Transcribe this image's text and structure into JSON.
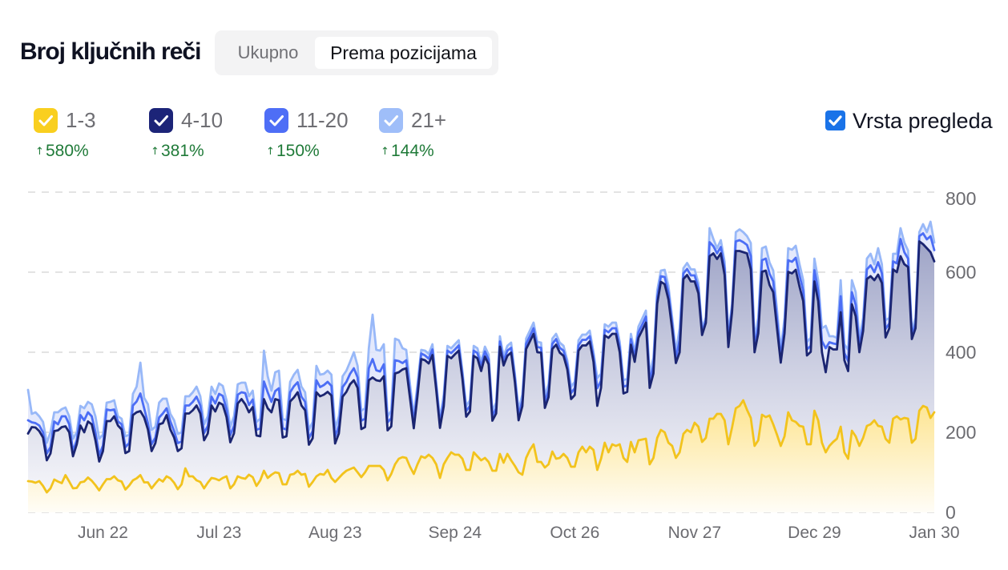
{
  "header": {
    "title": "Broj ključnih reči",
    "tabs": [
      {
        "label": "Ukupno",
        "selected": false
      },
      {
        "label": "Prema pozicijama",
        "selected": true
      }
    ]
  },
  "legend": {
    "items": [
      {
        "label": "1-3",
        "color": "#f9cf1f",
        "checked": true,
        "arrow": "↑",
        "change": "580%"
      },
      {
        "label": "4-10",
        "color": "#1c2478",
        "checked": true,
        "arrow": "↑",
        "change": "381%"
      },
      {
        "label": "11-20",
        "color": "#4e6ef6",
        "checked": true,
        "arrow": "↑",
        "change": "150%"
      },
      {
        "label": "21+",
        "color": "#9fbef9",
        "checked": true,
        "arrow": "↑",
        "change": "144%"
      }
    ]
  },
  "view_toggle": {
    "label": "Vrsta pregleda",
    "checked": true,
    "color": "#1a73e8"
  },
  "colors": {
    "positive_change": "#1f7a38",
    "text_muted": "#6e6e73"
  },
  "chart_data": {
    "type": "line",
    "title": "Broj ključnih reči",
    "xlabel": "",
    "ylabel": "",
    "x_unit": "day",
    "ylim": [
      0,
      800
    ],
    "yticks": [
      0,
      200,
      400,
      600,
      800
    ],
    "xticks": [
      {
        "label": "Jun 22",
        "index": 20
      },
      {
        "label": "Jul 23",
        "index": 51
      },
      {
        "label": "Aug 23",
        "index": 82
      },
      {
        "label": "Sep 24",
        "index": 114
      },
      {
        "label": "Oct 26",
        "index": 146
      },
      {
        "label": "Nov 27",
        "index": 178
      },
      {
        "label": "Dec 29",
        "index": 210
      },
      {
        "label": "Jan 30",
        "index": 242
      }
    ],
    "grid": true,
    "legend_position": "top-left",
    "series": [
      {
        "name": "1-3",
        "color": "#f2c31d",
        "values": [
          78,
          77,
          74,
          78,
          66,
          50,
          60,
          82,
          77,
          73,
          93,
          77,
          60,
          61,
          75,
          77,
          87,
          79,
          68,
          55,
          70,
          83,
          83,
          90,
          80,
          77,
          57,
          67,
          80,
          85,
          93,
          75,
          75,
          60,
          72,
          83,
          77,
          90,
          85,
          74,
          58,
          70,
          110,
          90,
          90,
          80,
          76,
          60,
          74,
          86,
          84,
          80,
          86,
          90,
          60,
          70,
          90,
          86,
          84,
          94,
          88,
          66,
          80,
          104,
          86,
          94,
          100,
          98,
          70,
          70,
          94,
          96,
          104,
          94,
          96,
          64,
          76,
          90,
          96,
          94,
          106,
          86,
          76,
          86,
          96,
          104,
          108,
          112,
          100,
          88,
          100,
          116,
          116,
          116,
          116,
          106,
          80,
          96,
          120,
          134,
          138,
          136,
          114,
          96,
          120,
          140,
          136,
          144,
          136,
          120,
          86,
          120,
          136,
          150,
          144,
          144,
          134,
          106,
          106,
          150,
          140,
          130,
          136,
          126,
          104,
          104,
          146,
          124,
          146,
          130,
          116,
          100,
          94,
          136,
          156,
          170,
          126,
          126,
          112,
          120,
          152,
          134,
          136,
          146,
          136,
          114,
          114,
          150,
          164,
          150,
          164,
          156,
          106,
          134,
          174,
          150,
          170,
          166,
          170,
          136,
          126,
          176,
          150,
          180,
          182,
          184,
          120,
          136,
          186,
          206,
          200,
          174,
          166,
          136,
          150,
          196,
          206,
          200,
          224,
          214,
          176,
          186,
          234,
          234,
          246,
          246,
          230,
          170,
          212,
          260,
          266,
          280,
          256,
          236,
          166,
          180,
          244,
          238,
          242,
          220,
          194,
          166,
          190,
          250,
          230,
          226,
          216,
          214,
          170,
          170,
          254,
          230,
          174,
          150,
          166,
          176,
          184,
          214,
          150,
          134,
          204,
          190,
          166,
          186,
          216,
          220,
          230,
          216,
          214,
          184,
          174,
          234,
          240,
          232,
          236,
          234,
          174,
          184,
          254,
          266,
          262,
          236,
          250
        ]
      },
      {
        "name": "4-10",
        "color": "#1b2571",
        "values": [
          197,
          213,
          212,
          203,
          187,
          130,
          147,
          203,
          205,
          213,
          215,
          200,
          140,
          170,
          217,
          200,
          227,
          220,
          180,
          127,
          153,
          228,
          228,
          240,
          217,
          207,
          148,
          153,
          243,
          250,
          253,
          237,
          207,
          153,
          173,
          220,
          223,
          243,
          207,
          187,
          153,
          160,
          247,
          247,
          255,
          267,
          247,
          180,
          197,
          267,
          252,
          274,
          269,
          238,
          175,
          197,
          272,
          283,
          270,
          250,
          263,
          192,
          190,
          283,
          260,
          250,
          283,
          280,
          187,
          190,
          277,
          287,
          300,
          267,
          255,
          169,
          185,
          300,
          290,
          294,
          301,
          292,
          172,
          197,
          289,
          301,
          320,
          330,
          311,
          208,
          213,
          330,
          337,
          330,
          328,
          340,
          205,
          215,
          347,
          350,
          357,
          360,
          285,
          210,
          290,
          383,
          380,
          372,
          393,
          306,
          211,
          265,
          391,
          385,
          395,
          404,
          333,
          239,
          252,
          391,
          385,
          353,
          389,
          370,
          229,
          247,
          414,
          367,
          391,
          399,
          325,
          230,
          265,
          408,
          427,
          446,
          400,
          399,
          261,
          288,
          408,
          419,
          399,
          391,
          357,
          283,
          293,
          404,
          417,
          417,
          427,
          376,
          266,
          311,
          442,
          436,
          446,
          446,
          400,
          297,
          301,
          419,
          376,
          436,
          455,
          474,
          311,
          347,
          521,
          576,
          570,
          532,
          457,
          373,
          400,
          583,
          593,
          577,
          577,
          547,
          443,
          473,
          640,
          647,
          633,
          647,
          593,
          413,
          500,
          653,
          653,
          650,
          647,
          607,
          400,
          447,
          601,
          604,
          568,
          550,
          460,
          374,
          447,
          601,
          597,
          606,
          564,
          528,
          392,
          401,
          577,
          528,
          400,
          350,
          413,
          407,
          407,
          500,
          380,
          353,
          520,
          490,
          400,
          453,
          583,
          590,
          580,
          594,
          573,
          437,
          460,
          607,
          600,
          640,
          620,
          613,
          433,
          460,
          677,
          670,
          660,
          650,
          627
        ]
      },
      {
        "name": "11-20",
        "color": "#4c6ef5",
        "values": [
          230,
          225,
          223,
          217,
          200,
          147,
          163,
          227,
          220,
          240,
          240,
          220,
          153,
          180,
          243,
          230,
          250,
          240,
          200,
          143,
          167,
          257,
          255,
          257,
          227,
          220,
          163,
          173,
          267,
          277,
          297,
          260,
          223,
          170,
          187,
          237,
          247,
          260,
          227,
          203,
          173,
          177,
          267,
          267,
          276,
          289,
          267,
          198,
          216,
          289,
          272,
          296,
          291,
          258,
          193,
          216,
          294,
          300,
          298,
          268,
          282,
          206,
          210,
          327,
          300,
          276,
          303,
          310,
          210,
          207,
          300,
          315,
          325,
          289,
          276,
          185,
          203,
          330,
          313,
          318,
          326,
          316,
          189,
          216,
          313,
          326,
          346,
          360,
          337,
          229,
          234,
          360,
          383,
          355,
          352,
          370,
          225,
          235,
          380,
          378,
          373,
          380,
          300,
          225,
          305,
          397,
          392,
          384,
          407,
          316,
          222,
          279,
          404,
          398,
          407,
          417,
          343,
          253,
          266,
          404,
          398,
          365,
          402,
          382,
          241,
          260,
          427,
          378,
          404,
          411,
          336,
          243,
          279,
          421,
          440,
          460,
          413,
          411,
          276,
          304,
          421,
          433,
          411,
          404,
          369,
          298,
          310,
          417,
          431,
          431,
          440,
          388,
          310,
          329,
          456,
          450,
          460,
          460,
          413,
          314,
          317,
          433,
          388,
          450,
          469,
          489,
          329,
          367,
          537,
          590,
          588,
          549,
          471,
          385,
          430,
          597,
          608,
          592,
          592,
          560,
          450,
          480,
          675,
          665,
          647,
          663,
          610,
          430,
          510,
          677,
          680,
          675,
          668,
          640,
          415,
          464,
          630,
          634,
          596,
          577,
          483,
          388,
          464,
          630,
          626,
          636,
          592,
          554,
          407,
          416,
          605,
          554,
          428,
          410,
          425,
          422,
          420,
          540,
          398,
          378,
          550,
          518,
          415,
          468,
          607,
          617,
          600,
          625,
          597,
          458,
          472,
          627,
          622,
          683,
          650,
          634,
          444,
          472,
          690,
          697,
          682,
          690,
          655
        ]
      },
      {
        "name": "21+",
        "color": "#98b8f8",
        "values": [
          306,
          246,
          250,
          240,
          226,
          174,
          200,
          250,
          250,
          258,
          262,
          240,
          184,
          200,
          266,
          260,
          276,
          270,
          240,
          184,
          194,
          274,
          276,
          280,
          240,
          234,
          190,
          194,
          296,
          314,
          374,
          286,
          270,
          206,
          214,
          274,
          284,
          284,
          246,
          230,
          196,
          200,
          290,
          290,
          300,
          314,
          290,
          220,
          240,
          314,
          296,
          322,
          316,
          280,
          214,
          240,
          320,
          324,
          324,
          290,
          304,
          226,
          234,
          404,
          340,
          304,
          350,
          354,
          234,
          230,
          326,
          344,
          356,
          314,
          300,
          206,
          226,
          366,
          344,
          346,
          354,
          344,
          210,
          240,
          340,
          354,
          376,
          400,
          366,
          254,
          260,
          410,
          494,
          406,
          404,
          420,
          240,
          254,
          434,
          430,
          410,
          406,
          320,
          240,
          320,
          406,
          404,
          396,
          420,
          326,
          234,
          294,
          416,
          410,
          420,
          430,
          354,
          266,
          280,
          416,
          410,
          376,
          414,
          394,
          254,
          274,
          440,
          390,
          416,
          424,
          346,
          256,
          294,
          434,
          454,
          474,
          426,
          424,
          290,
          320,
          434,
          446,
          424,
          416,
          380,
          314,
          326,
          430,
          444,
          444,
          454,
          400,
          336,
          346,
          470,
          464,
          474,
          474,
          426,
          330,
          334,
          446,
          400,
          464,
          484,
          504,
          346,
          386,
          554,
          604,
          606,
          566,
          486,
          400,
          460,
          610,
          623,
          607,
          607,
          573,
          460,
          487,
          710,
          683,
          660,
          680,
          627,
          447,
          520,
          700,
          707,
          700,
          690,
          673,
          434,
          486,
          660,
          664,
          624,
          604,
          506,
          406,
          486,
          660,
          656,
          666,
          620,
          580,
          426,
          436,
          634,
          580,
          460,
          466,
          440,
          440,
          436,
          580,
          420,
          406,
          580,
          550,
          434,
          486,
          634,
          646,
          620,
          660,
          620,
          480,
          486,
          646,
          646,
          710,
          674,
          654,
          454,
          486,
          700,
          720,
          700,
          726,
          674
        ]
      }
    ]
  }
}
